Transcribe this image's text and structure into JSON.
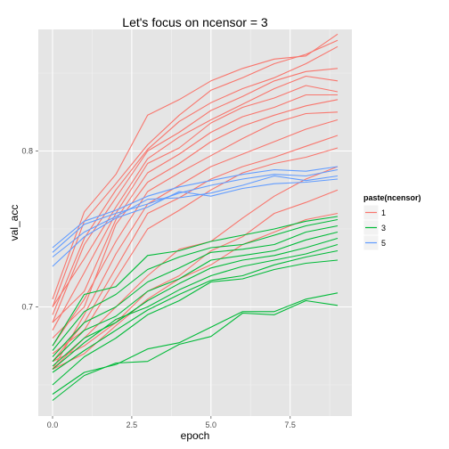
{
  "chart_data": {
    "type": "line",
    "title": "Let's focus on ncensor = 3",
    "xlabel": "epoch",
    "ylabel": "val_acc",
    "xlim": [
      -0.45,
      9.45
    ],
    "ylim": [
      0.63,
      0.878
    ],
    "x_ticks": [
      0,
      2.5,
      5,
      7.5
    ],
    "x_tick_labels": [
      "0.0",
      "2.5",
      "5.0",
      "7.5"
    ],
    "y_ticks": [
      0.7,
      0.8
    ],
    "y_tick_labels": [
      "0.7",
      "0.8"
    ],
    "grid": true,
    "legend_position": "right",
    "legend": {
      "title": "paste(ncensor)",
      "entries": [
        {
          "label": "1",
          "color": "#f8766d"
        },
        {
          "label": "3",
          "color": "#00ba38"
        },
        {
          "label": "5",
          "color": "#619cff"
        }
      ]
    },
    "x": [
      0,
      1,
      2,
      3,
      4,
      5,
      6,
      7,
      8,
      9
    ],
    "series": [
      {
        "group": "1",
        "color": "#f8766d",
        "values": [
          0.705,
          0.761,
          0.785,
          0.823,
          0.833,
          0.845,
          0.853,
          0.859,
          0.861,
          0.875
        ]
      },
      {
        "group": "1",
        "color": "#f8766d",
        "values": [
          0.7,
          0.755,
          0.779,
          0.804,
          0.823,
          0.839,
          0.847,
          0.856,
          0.862,
          0.871
        ]
      },
      {
        "group": "1",
        "color": "#f8766d",
        "values": [
          0.695,
          0.744,
          0.775,
          0.801,
          0.819,
          0.831,
          0.84,
          0.847,
          0.856,
          0.867
        ]
      },
      {
        "group": "1",
        "color": "#f8766d",
        "values": [
          0.69,
          0.74,
          0.77,
          0.8,
          0.812,
          0.826,
          0.835,
          0.845,
          0.851,
          0.853
        ]
      },
      {
        "group": "1",
        "color": "#f8766d",
        "values": [
          0.7,
          0.731,
          0.764,
          0.795,
          0.809,
          0.82,
          0.83,
          0.84,
          0.848,
          0.845
        ]
      },
      {
        "group": "1",
        "color": "#f8766d",
        "values": [
          0.685,
          0.722,
          0.76,
          0.792,
          0.802,
          0.818,
          0.828,
          0.834,
          0.842,
          0.838
        ]
      },
      {
        "group": "1",
        "color": "#f8766d",
        "values": [
          0.69,
          0.71,
          0.756,
          0.786,
          0.798,
          0.812,
          0.822,
          0.828,
          0.836,
          0.836
        ]
      },
      {
        "group": "1",
        "color": "#f8766d",
        "values": [
          0.68,
          0.7,
          0.753,
          0.78,
          0.792,
          0.806,
          0.816,
          0.823,
          0.829,
          0.833
        ]
      },
      {
        "group": "1",
        "color": "#f8766d",
        "values": [
          0.675,
          0.705,
          0.742,
          0.774,
          0.786,
          0.797,
          0.808,
          0.818,
          0.824,
          0.825
        ]
      },
      {
        "group": "1",
        "color": "#f8766d",
        "values": [
          0.66,
          0.695,
          0.734,
          0.766,
          0.778,
          0.79,
          0.798,
          0.806,
          0.814,
          0.82
        ]
      },
      {
        "group": "1",
        "color": "#f8766d",
        "values": [
          0.665,
          0.69,
          0.725,
          0.76,
          0.77,
          0.782,
          0.79,
          0.796,
          0.803,
          0.81
        ]
      },
      {
        "group": "1",
        "color": "#f8766d",
        "values": [
          0.67,
          0.685,
          0.718,
          0.75,
          0.762,
          0.775,
          0.786,
          0.792,
          0.796,
          0.802
        ]
      },
      {
        "group": "1",
        "color": "#f8766d",
        "values": [
          0.66,
          0.68,
          0.7,
          0.72,
          0.737,
          0.742,
          0.757,
          0.771,
          0.782,
          0.79
        ]
      },
      {
        "group": "1",
        "color": "#f8766d",
        "values": [
          0.665,
          0.675,
          0.69,
          0.71,
          0.72,
          0.736,
          0.745,
          0.76,
          0.767,
          0.775
        ]
      },
      {
        "group": "1",
        "color": "#f8766d",
        "values": [
          0.66,
          0.67,
          0.688,
          0.705,
          0.718,
          0.727,
          0.74,
          0.748,
          0.756,
          0.76
        ]
      },
      {
        "group": "3",
        "color": "#00ba38",
        "values": [
          0.675,
          0.708,
          0.713,
          0.733,
          0.736,
          0.742,
          0.746,
          0.75,
          0.755,
          0.758
        ]
      },
      {
        "group": "3",
        "color": "#00ba38",
        "values": [
          0.672,
          0.697,
          0.708,
          0.724,
          0.732,
          0.738,
          0.74,
          0.746,
          0.752,
          0.756
        ]
      },
      {
        "group": "3",
        "color": "#00ba38",
        "values": [
          0.668,
          0.69,
          0.7,
          0.716,
          0.725,
          0.735,
          0.737,
          0.74,
          0.748,
          0.752
        ]
      },
      {
        "group": "3",
        "color": "#00ba38",
        "values": [
          0.665,
          0.685,
          0.694,
          0.71,
          0.718,
          0.73,
          0.733,
          0.736,
          0.743,
          0.748
        ]
      },
      {
        "group": "3",
        "color": "#00ba38",
        "values": [
          0.662,
          0.68,
          0.69,
          0.704,
          0.715,
          0.725,
          0.73,
          0.733,
          0.738,
          0.744
        ]
      },
      {
        "group": "3",
        "color": "#00ba38",
        "values": [
          0.66,
          0.677,
          0.692,
          0.7,
          0.711,
          0.72,
          0.726,
          0.73,
          0.734,
          0.74
        ]
      },
      {
        "group": "3",
        "color": "#00ba38",
        "values": [
          0.658,
          0.672,
          0.685,
          0.698,
          0.708,
          0.717,
          0.72,
          0.727,
          0.732,
          0.736
        ]
      },
      {
        "group": "3",
        "color": "#00ba38",
        "values": [
          0.65,
          0.668,
          0.68,
          0.695,
          0.704,
          0.716,
          0.718,
          0.724,
          0.728,
          0.73
        ]
      },
      {
        "group": "3",
        "color": "#00ba38",
        "values": [
          0.644,
          0.658,
          0.663,
          0.673,
          0.677,
          0.687,
          0.697,
          0.697,
          0.705,
          0.709
        ]
      },
      {
        "group": "3",
        "color": "#00ba38",
        "values": [
          0.64,
          0.656,
          0.664,
          0.665,
          0.676,
          0.681,
          0.696,
          0.695,
          0.704,
          0.701
        ]
      },
      {
        "group": "5",
        "color": "#619cff",
        "values": [
          0.738,
          0.755,
          0.762,
          0.771,
          0.777,
          0.781,
          0.785,
          0.788,
          0.787,
          0.79
        ]
      },
      {
        "group": "5",
        "color": "#619cff",
        "values": [
          0.735,
          0.753,
          0.76,
          0.766,
          0.773,
          0.778,
          0.782,
          0.785,
          0.784,
          0.788
        ]
      },
      {
        "group": "5",
        "color": "#619cff",
        "values": [
          0.732,
          0.748,
          0.758,
          0.769,
          0.77,
          0.773,
          0.778,
          0.784,
          0.781,
          0.784
        ]
      },
      {
        "group": "5",
        "color": "#619cff",
        "values": [
          0.726,
          0.745,
          0.757,
          0.764,
          0.774,
          0.771,
          0.776,
          0.779,
          0.78,
          0.782
        ]
      }
    ]
  }
}
